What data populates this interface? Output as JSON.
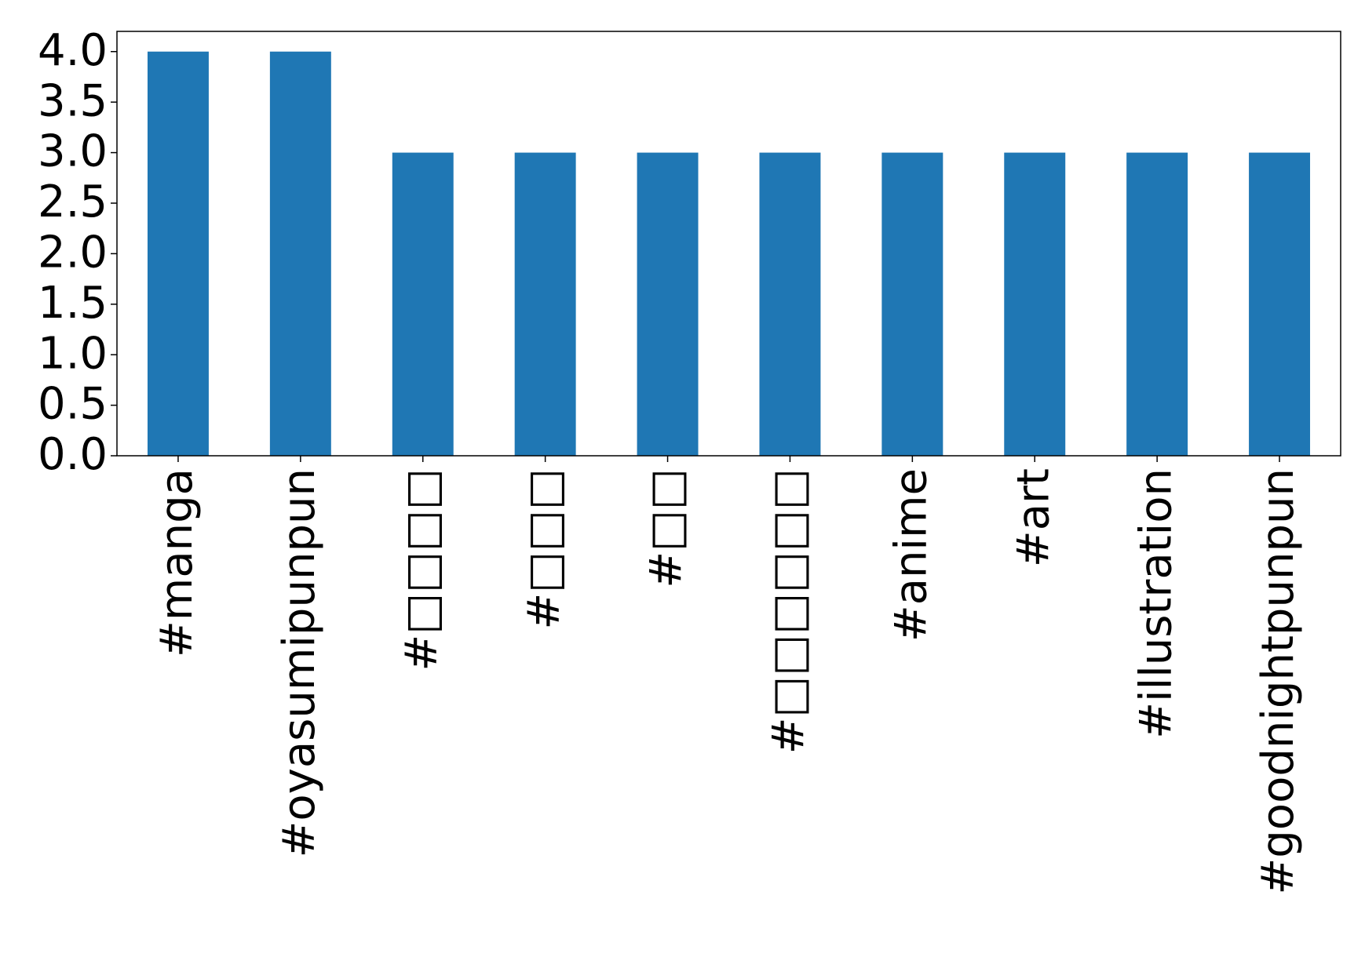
{
  "chart_data": {
    "type": "bar",
    "categories": [
      "#manga",
      "#oyasumipunpun",
      "#□□□□",
      "#□□□",
      "#□□",
      "#□□□□□□",
      "#anime",
      "#art",
      "#illustration",
      "#goodnightpunpun"
    ],
    "values": [
      4,
      4,
      3,
      3,
      3,
      3,
      3,
      3,
      3,
      3
    ],
    "color": "#1f77b4",
    "ylim": [
      0,
      4.2
    ],
    "yticks": [
      {
        "value": 0,
        "label": "0.0"
      },
      {
        "value": 0.5,
        "label": "0.5"
      },
      {
        "value": 1,
        "label": "1.0"
      },
      {
        "value": 1.5,
        "label": "1.5"
      },
      {
        "value": 2,
        "label": "2.0"
      },
      {
        "value": 2.5,
        "label": "2.5"
      },
      {
        "value": 3,
        "label": "3.0"
      },
      {
        "value": 3.5,
        "label": "3.5"
      },
      {
        "value": 4,
        "label": "4.0"
      }
    ],
    "grid": false
  }
}
